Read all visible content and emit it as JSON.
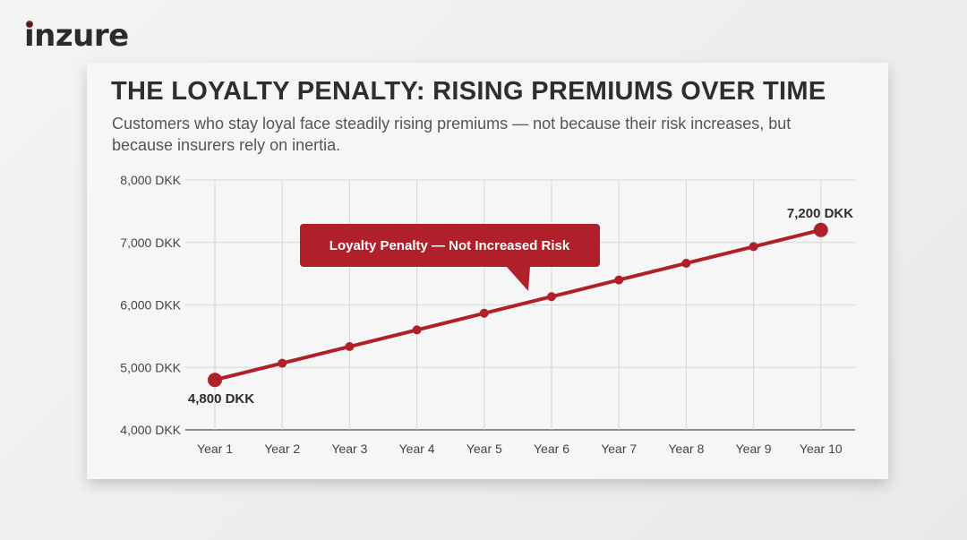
{
  "logo": {
    "text": "inzure"
  },
  "colors": {
    "accent": "#b0202a",
    "text": "#2e2e30",
    "grid": "#d6d6d6"
  },
  "chart_data": {
    "type": "line",
    "title": "THE LOYALTY PENALTY: RISING PREMIUMS OVER TIME",
    "subtitle": "Customers who stay loyal face steadily rising premiums — not because their risk increases, but because insurers rely on inertia.",
    "categories": [
      "Year 1",
      "Year 2",
      "Year 3",
      "Year 4",
      "Year 5",
      "Year 6",
      "Year 7",
      "Year 8",
      "Year 9",
      "Year 10"
    ],
    "series": [
      {
        "values": [
          4800,
          5067,
          5333,
          5600,
          5867,
          6133,
          6400,
          6667,
          6933,
          7200
        ]
      }
    ],
    "ylim": [
      4000,
      8000
    ],
    "yticks": [
      "4,000 DKK",
      "5,000 DKK",
      "6,000 DKK",
      "7,000 DKK",
      "8,000 DKK"
    ],
    "grid": true,
    "annotations": {
      "start": "4,800 DKK",
      "end": "7,200 DKK",
      "callout": "Loyalty Penalty — Not Increased Risk"
    }
  }
}
